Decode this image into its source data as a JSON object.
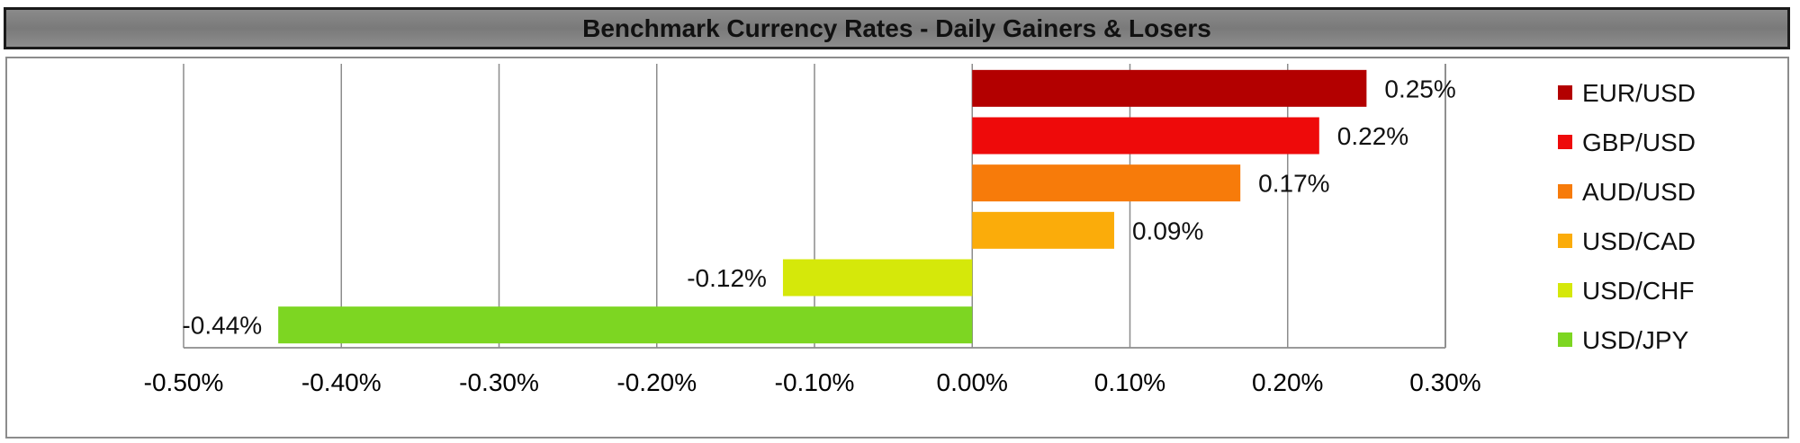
{
  "chart_data": {
    "type": "bar",
    "orientation": "horizontal",
    "title": "Benchmark Currency Rates - Daily Gainers & Losers",
    "categories": [
      "EUR/USD",
      "GBP/USD",
      "AUD/USD",
      "USD/CAD",
      "USD/CHF",
      "USD/JPY"
    ],
    "values": [
      0.25,
      0.22,
      0.17,
      0.09,
      -0.12,
      -0.44
    ],
    "value_labels": [
      "0.25%",
      "0.22%",
      "0.17%",
      "0.09%",
      "-0.12%",
      "-0.44%"
    ],
    "colors": [
      "#b30000",
      "#ee0a0a",
      "#f77b0a",
      "#fbac0a",
      "#d5e80a",
      "#7dd622"
    ],
    "xlim": [
      -0.5,
      0.3
    ],
    "xticks": [
      -0.5,
      -0.4,
      -0.3,
      -0.2,
      -0.1,
      0.0,
      0.1,
      0.2,
      0.3
    ],
    "xtick_labels": [
      "-0.50%",
      "-0.40%",
      "-0.30%",
      "-0.20%",
      "-0.10%",
      "0.00%",
      "0.10%",
      "0.20%",
      "0.30%"
    ],
    "xlabel": "",
    "ylabel": "",
    "grid": "vertical",
    "legend_position": "right"
  }
}
